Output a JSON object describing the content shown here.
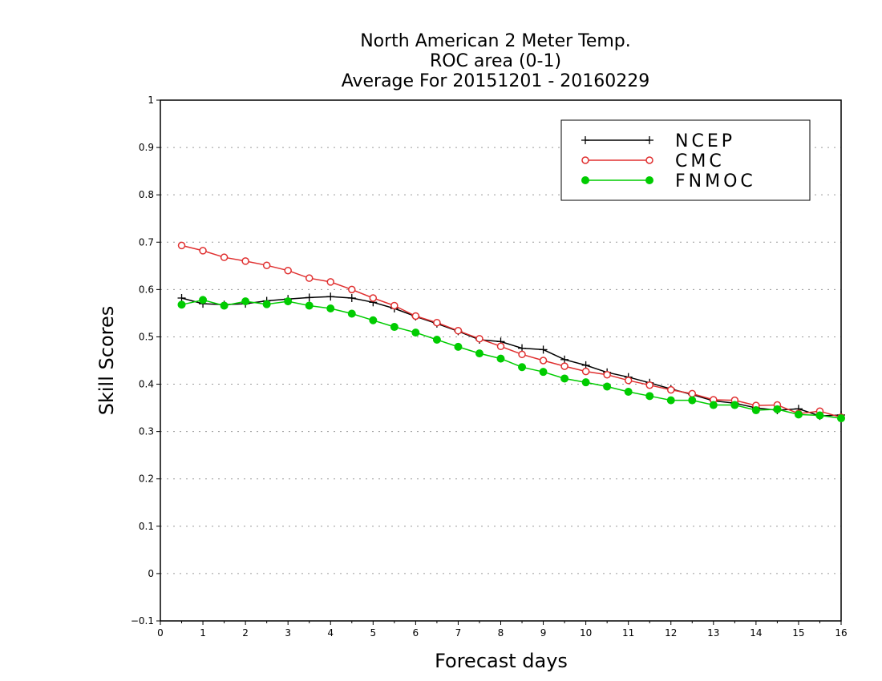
{
  "chart_data": {
    "type": "line",
    "title_lines": [
      "North American 2 Meter Temp.",
      "ROC area (0-1)",
      "Average For 20151201 - 20160229"
    ],
    "xlabel": "Forecast days",
    "ylabel": "Skill Scores",
    "xlim": [
      0,
      16
    ],
    "ylim": [
      -0.1,
      1
    ],
    "xticks": [
      0,
      1,
      2,
      3,
      4,
      5,
      6,
      7,
      8,
      9,
      10,
      11,
      12,
      13,
      14,
      15,
      16
    ],
    "xtick_labels": [
      "0",
      "1",
      "2",
      "3",
      "4",
      "5",
      "6",
      "7",
      "8",
      "9",
      "10",
      "11",
      "12",
      "13",
      "14",
      "15",
      "16"
    ],
    "yticks": [
      -0.1,
      0,
      0.1,
      0.2,
      0.3,
      0.4,
      0.5,
      0.6,
      0.7,
      0.8,
      0.9,
      1
    ],
    "ytick_labels": [
      "−0.1",
      "0",
      "0.1",
      "0.2",
      "0.3",
      "0.4",
      "0.5",
      "0.6",
      "0.7",
      "0.8",
      "0.9",
      "1"
    ],
    "grid": "horizontal dotted",
    "legend_position": "top-right",
    "x": [
      0.5,
      1,
      1.5,
      2,
      2.5,
      3,
      3.5,
      4,
      4.5,
      5,
      5.5,
      6,
      6.5,
      7,
      7.5,
      8,
      8.5,
      9,
      9.5,
      10,
      10.5,
      11,
      11.5,
      12,
      12.5,
      13,
      13.5,
      14,
      14.5,
      15,
      15.5,
      16
    ],
    "series": [
      {
        "name": "NCEP",
        "color": "#000000",
        "marker": "plus",
        "values": [
          0.582,
          0.57,
          0.568,
          0.57,
          0.576,
          0.58,
          0.583,
          0.585,
          0.582,
          0.573,
          0.56,
          0.543,
          0.528,
          0.512,
          0.494,
          0.49,
          0.476,
          0.473,
          0.452,
          0.44,
          0.425,
          0.415,
          0.403,
          0.39,
          0.378,
          0.365,
          0.36,
          0.35,
          0.345,
          0.348,
          0.333,
          0.335
        ]
      },
      {
        "name": "CMC",
        "color": "#e03030",
        "marker": "open-circle",
        "values": [
          0.693,
          0.682,
          0.668,
          0.66,
          0.651,
          0.64,
          0.624,
          0.616,
          0.6,
          0.582,
          0.566,
          0.544,
          0.53,
          0.513,
          0.496,
          0.48,
          0.463,
          0.45,
          0.438,
          0.427,
          0.42,
          0.408,
          0.398,
          0.388,
          0.38,
          0.367,
          0.366,
          0.355,
          0.356,
          0.338,
          0.343,
          0.33
        ]
      },
      {
        "name": "FNMOC",
        "color": "#00cc00",
        "marker": "filled-circle",
        "values": [
          0.568,
          0.578,
          0.566,
          0.575,
          0.569,
          0.575,
          0.566,
          0.56,
          0.549,
          0.535,
          0.521,
          0.509,
          0.494,
          0.479,
          0.465,
          0.454,
          0.436,
          0.426,
          0.412,
          0.404,
          0.395,
          0.384,
          0.375,
          0.366,
          0.366,
          0.356,
          0.356,
          0.345,
          0.347,
          0.336,
          0.334,
          0.328
        ]
      }
    ]
  }
}
